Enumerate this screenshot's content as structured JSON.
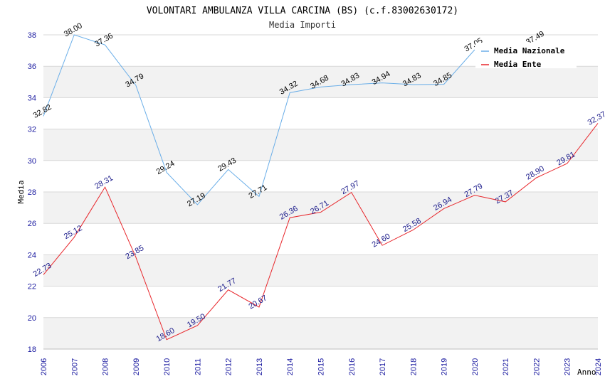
{
  "chart_data": {
    "type": "line",
    "title": "VOLONTARI AMBULANZA VILLA CARCINA (BS) (c.f.83002630172)",
    "subtitle": "Media Importi",
    "xlabel": "Anno",
    "ylabel": "Media",
    "ylim": [
      18,
      38
    ],
    "yticks": [
      18,
      20,
      22,
      24,
      26,
      28,
      30,
      32,
      34,
      36,
      38
    ],
    "grid": true,
    "legend_position": "top-right",
    "x": [
      "2006",
      "2007",
      "2008",
      "2009",
      "2010",
      "2011",
      "2012",
      "2013",
      "2014",
      "2015",
      "2016",
      "2017",
      "2018",
      "2019",
      "2020",
      "2021",
      "2022",
      "2023",
      "2024"
    ],
    "series": [
      {
        "name": "Media Nazionale",
        "color": "#6aaee8",
        "label_color": "#000000",
        "values": [
          32.82,
          38.0,
          37.36,
          34.79,
          29.24,
          27.19,
          29.43,
          27.71,
          34.32,
          34.68,
          34.83,
          34.94,
          34.83,
          34.85,
          37.05,
          null,
          37.49,
          null,
          null
        ],
        "labels": [
          "32.82",
          "38.00",
          "37.36",
          "34.79",
          "29.24",
          "27.19",
          "29.43",
          "27.71",
          "34.32",
          "34.68",
          "34.83",
          "34.94",
          "34.83",
          "34.85",
          "37.05",
          "",
          "37.49",
          "",
          ""
        ]
      },
      {
        "name": "Media Ente",
        "color": "#e8262b",
        "label_color": "#1a1a8a",
        "values": [
          22.73,
          25.12,
          28.31,
          23.85,
          18.6,
          19.5,
          21.77,
          20.67,
          26.36,
          26.71,
          27.97,
          24.6,
          25.58,
          26.94,
          27.79,
          27.37,
          28.9,
          29.81,
          32.37
        ],
        "labels": [
          "22.73",
          "25.12",
          "28.31",
          "23.85",
          "18.60",
          "19.50",
          "21.77",
          "20.67",
          "26.36",
          "26.71",
          "27.97",
          "24.60",
          "25.58",
          "26.94",
          "27.79",
          "27.37",
          "28.90",
          "29.81",
          "32.37"
        ]
      }
    ]
  }
}
